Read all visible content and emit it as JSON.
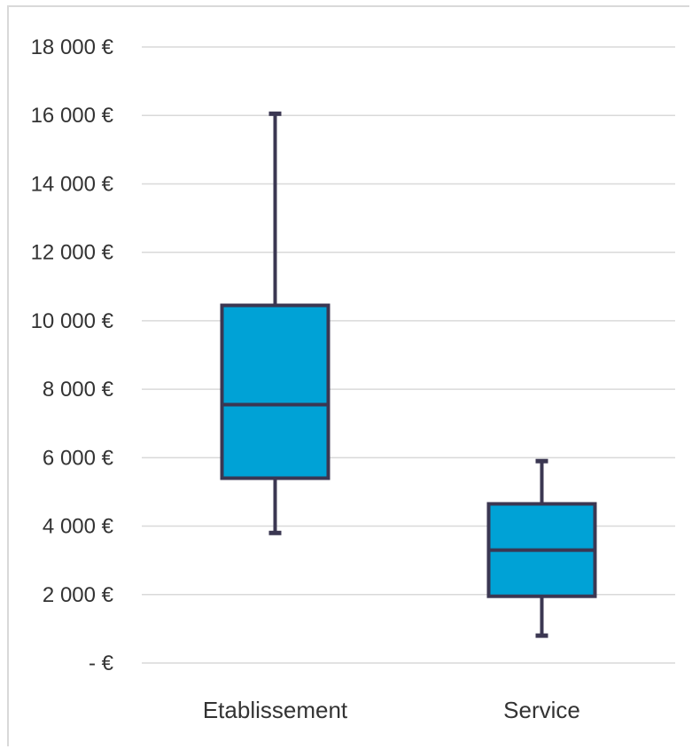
{
  "chart_data": {
    "type": "box",
    "title": "",
    "xlabel": "",
    "ylabel": "",
    "ylim": [
      0,
      18000
    ],
    "y_ticks": [
      0,
      2000,
      4000,
      6000,
      8000,
      10000,
      12000,
      14000,
      16000,
      18000
    ],
    "y_tick_labels": [
      "- €",
      "2 000 €",
      "4 000 €",
      "6 000 €",
      "8 000 €",
      "10 000 €",
      "12 000 €",
      "14 000 €",
      "16 000 €",
      "18 000 €"
    ],
    "grid": true,
    "legend": "none",
    "colors": {
      "box_fill": "#00a2d6",
      "box_stroke": "#3b3752",
      "grid": "#d9d9d9"
    },
    "categories": [
      "Etablissement",
      "Service"
    ],
    "boxes": [
      {
        "category": "Etablissement",
        "min": 3800,
        "q1": 5400,
        "median": 7550,
        "q3": 10450,
        "max": 16050
      },
      {
        "category": "Service",
        "min": 800,
        "q1": 1950,
        "median": 3300,
        "q3": 4650,
        "max": 5900
      }
    ]
  }
}
